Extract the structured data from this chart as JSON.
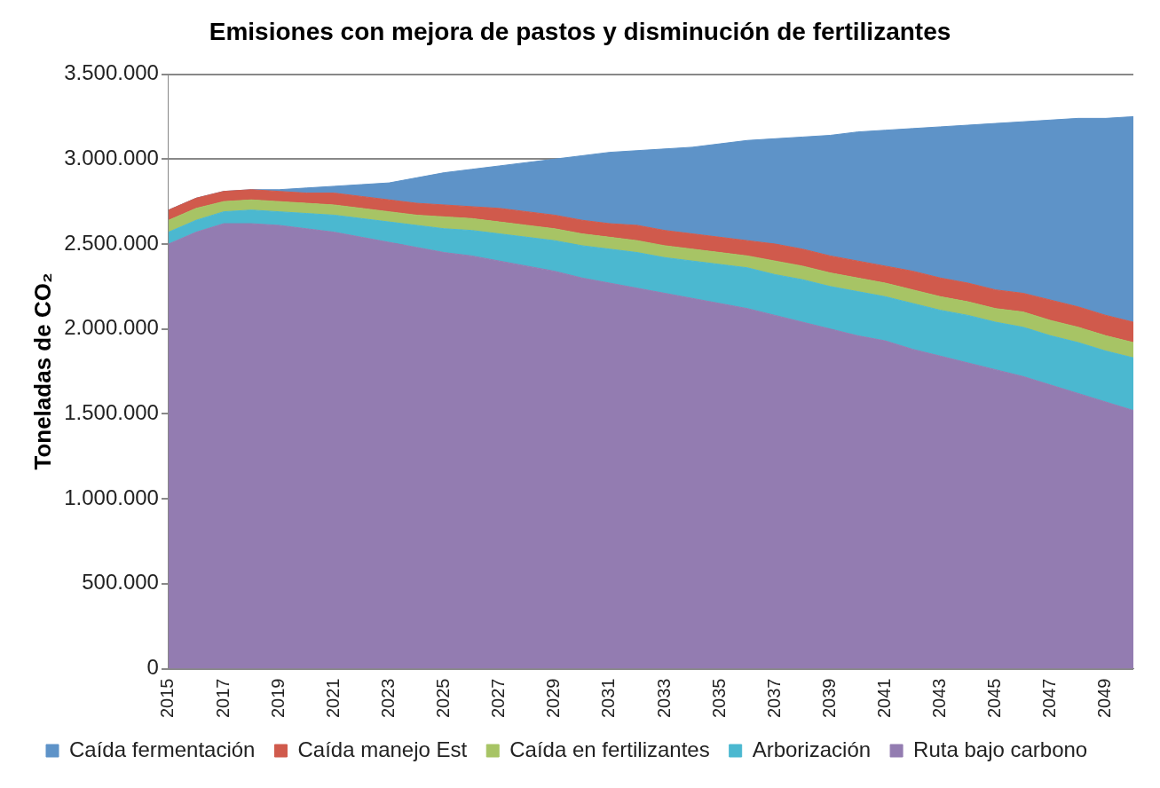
{
  "chart_data": {
    "type": "area",
    "title": "Emisiones con mejora de pastos y disminución de fertilizantes",
    "ylabel": "Toneladas de CO₂",
    "categories": [
      "2015",
      null,
      "2017",
      null,
      "2019",
      null,
      "2021",
      null,
      "2023",
      null,
      "2025",
      null,
      "2027",
      null,
      "2029",
      null,
      "2031",
      null,
      "2033",
      null,
      "2035",
      null,
      "2037",
      null,
      "2039",
      null,
      "2041",
      null,
      "2043",
      null,
      "2045",
      null,
      "2047",
      null,
      "2049",
      null
    ],
    "stacked": true,
    "marker": "none",
    "grid": "y",
    "legend": "bottom",
    "ylim": [
      0,
      3500000
    ],
    "yticks": [
      {
        "value": 0,
        "label": "0"
      },
      {
        "value": 500000,
        "label": "500.000"
      },
      {
        "value": 1000000,
        "label": "1.000.000"
      },
      {
        "value": 1500000,
        "label": "1.500.000"
      },
      {
        "value": 2000000,
        "label": "2.000.000"
      },
      {
        "value": 2500000,
        "label": "2.500.000"
      },
      {
        "value": 3000000,
        "label": "3.000.000"
      },
      {
        "value": 3500000,
        "label": "3.500.000"
      }
    ],
    "series": [
      {
        "name": "Ruta bajo carbono",
        "color": "#937cb1",
        "values": [
          2500000,
          2570000,
          2620000,
          2620000,
          2610000,
          2590000,
          2570000,
          2540000,
          2510000,
          2480000,
          2450000,
          2430000,
          2400000,
          2370000,
          2340000,
          2300000,
          2270000,
          2240000,
          2210000,
          2180000,
          2150000,
          2120000,
          2080000,
          2040000,
          2000000,
          1960000,
          1930000,
          1880000,
          1840000,
          1800000,
          1760000,
          1720000,
          1670000,
          1620000,
          1570000,
          1520000
        ]
      },
      {
        "name": "Arborización",
        "color": "#4bb8d0",
        "values": [
          70000,
          70000,
          70000,
          80000,
          80000,
          90000,
          100000,
          110000,
          120000,
          130000,
          140000,
          150000,
          160000,
          170000,
          180000,
          190000,
          200000,
          210000,
          210000,
          220000,
          230000,
          240000,
          240000,
          250000,
          250000,
          260000,
          260000,
          270000,
          270000,
          280000,
          280000,
          290000,
          290000,
          300000,
          300000,
          310000
        ]
      },
      {
        "name": "Caída en fertilizantes",
        "color": "#a7c465",
        "values": [
          70000,
          70000,
          60000,
          60000,
          60000,
          60000,
          60000,
          60000,
          60000,
          60000,
          70000,
          70000,
          70000,
          70000,
          70000,
          70000,
          70000,
          70000,
          70000,
          70000,
          70000,
          70000,
          80000,
          80000,
          80000,
          80000,
          80000,
          80000,
          80000,
          80000,
          80000,
          90000,
          90000,
          90000,
          90000,
          90000
        ]
      },
      {
        "name": "Caída manejo Est",
        "color": "#d05a4c",
        "values": [
          60000,
          60000,
          60000,
          60000,
          60000,
          60000,
          70000,
          70000,
          70000,
          70000,
          70000,
          70000,
          80000,
          80000,
          80000,
          80000,
          80000,
          90000,
          90000,
          90000,
          90000,
          90000,
          100000,
          100000,
          100000,
          100000,
          100000,
          110000,
          110000,
          110000,
          110000,
          110000,
          120000,
          120000,
          120000,
          120000
        ]
      },
      {
        "name": "Caída fermentación",
        "color": "#5e93c8",
        "values": [
          0,
          0,
          0,
          0,
          10000,
          30000,
          40000,
          70000,
          100000,
          150000,
          190000,
          220000,
          250000,
          290000,
          330000,
          380000,
          420000,
          440000,
          480000,
          510000,
          550000,
          590000,
          620000,
          660000,
          710000,
          760000,
          800000,
          840000,
          890000,
          930000,
          980000,
          1010000,
          1060000,
          1110000,
          1160000,
          1210000
        ]
      }
    ]
  }
}
